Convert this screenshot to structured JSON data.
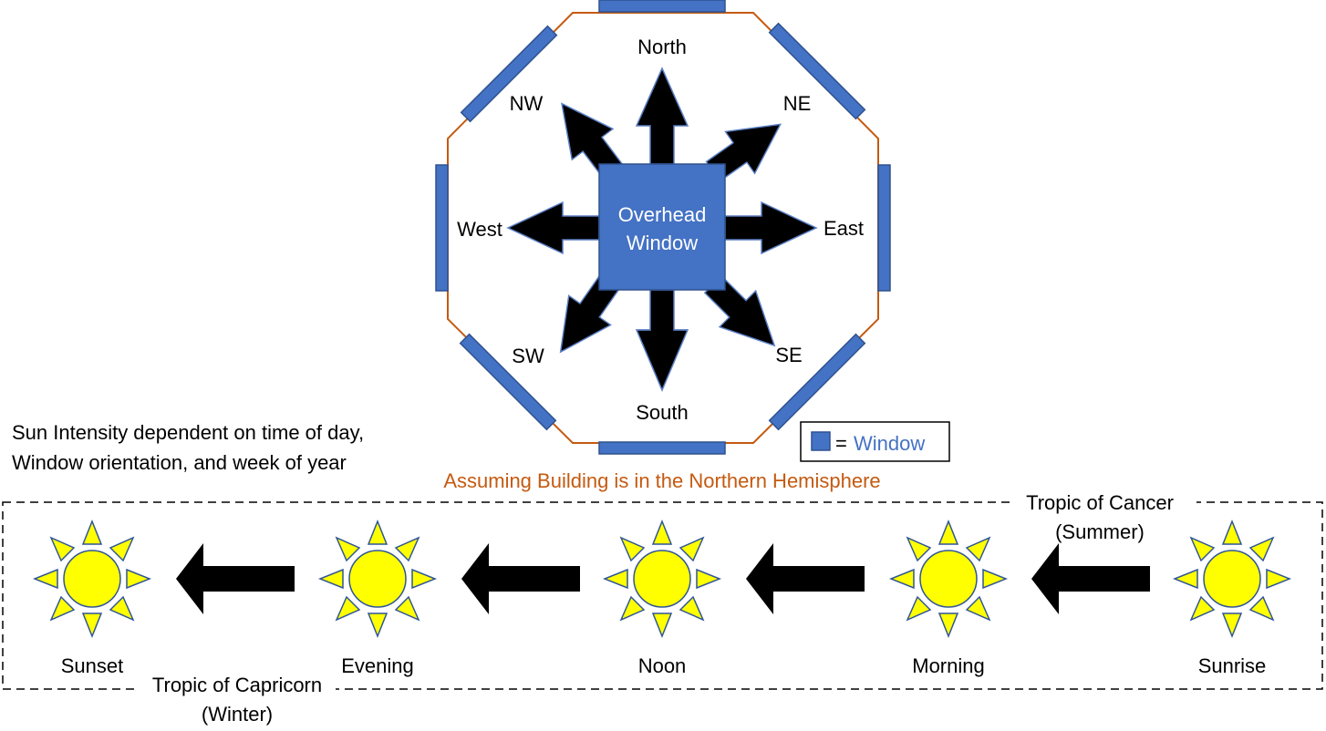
{
  "compass": {
    "north": "North",
    "ne": "NE",
    "east": "East",
    "se": "SE",
    "south": "South",
    "sw": "SW",
    "west": "West",
    "nw": "NW",
    "center_line1": "Overhead",
    "center_line2": "Window"
  },
  "legend": {
    "equals": "=",
    "window": "Window"
  },
  "note": {
    "line1": "Sun Intensity dependent on time of day,",
    "line2": "Window orientation, and week of year"
  },
  "hemisphere": "Assuming Building is in the Northern Hemisphere",
  "timeline": {
    "cancer_line1": "Tropic of Cancer",
    "cancer_line2": "(Summer)",
    "capricorn_line1": "Tropic of Capricorn",
    "capricorn_line2": "(Winter)",
    "suns": [
      "Sunset",
      "Evening",
      "Noon",
      "Morning",
      "Sunrise"
    ]
  },
  "colors": {
    "window_fill": "#4472c4",
    "window_stroke": "#2f528f",
    "octagon_stroke": "#c55a11",
    "hemisphere_text": "#c55a11",
    "window_text": "#4472c4",
    "sun_fill": "#ffff00",
    "sun_stroke": "#2f5597",
    "arrow_fill": "#000000"
  }
}
